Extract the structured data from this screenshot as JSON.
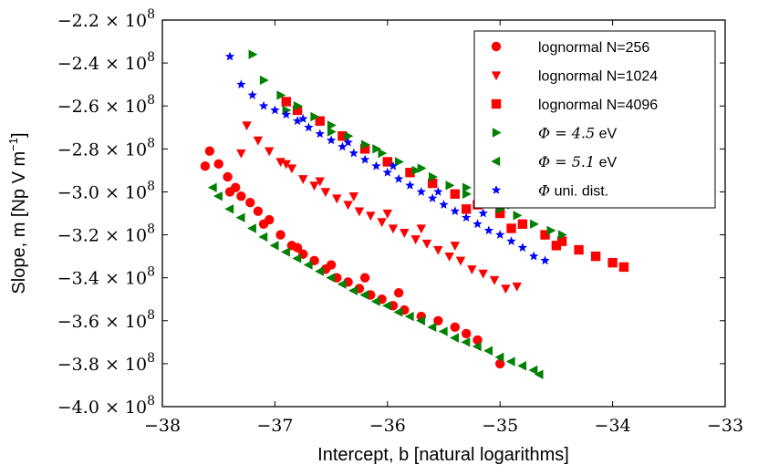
{
  "chart_data": {
    "type": "scatter",
    "title": "",
    "xlabel": "Intercept, b [natural logarithms]",
    "ylabel": "Slope, m [Np V m",
    "ylabel_sup": "−1",
    "ylabel_end": "]",
    "xlim": [
      -38,
      -33
    ],
    "ylim": [
      -400000000.0,
      -220000000.0
    ],
    "xticks": [
      -38,
      -37,
      -36,
      -35,
      -34,
      -33
    ],
    "xtick_labels": [
      "−38",
      "−37",
      "−36",
      "−35",
      "−34",
      "−33"
    ],
    "yticks": [
      -220000000.0,
      -240000000.0,
      -260000000.0,
      -280000000.0,
      -300000000.0,
      -320000000.0,
      -340000000.0,
      -360000000.0,
      -380000000.0,
      -400000000.0
    ],
    "ytick_mantissas": [
      "−2.2",
      "−2.4",
      "−2.6",
      "−2.8",
      "−3.0",
      "−3.2",
      "−3.4",
      "−3.6",
      "−3.8",
      "−4.0"
    ],
    "ytick_suffix": " × 10",
    "ytick_exponent": "8",
    "legend_position": "top-right",
    "series": [
      {
        "name": "lognormal N=256",
        "label_parts": [
          "lognormal N=256"
        ],
        "marker": "circle",
        "color": "#ff0000",
        "x_points": [
          -37.62,
          -37.58,
          -37.5,
          -37.42,
          -37.35,
          -37.3,
          -37.22,
          -37.15,
          -37.05,
          -36.95,
          -36.85,
          -36.75,
          -36.65,
          -36.55,
          -36.45,
          -36.35,
          -36.25,
          -36.15,
          -36.05,
          -35.95,
          -35.85,
          -35.7,
          -35.55,
          -35.4,
          -35.3,
          -35.2,
          -35.0,
          -37.4,
          -37.1,
          -36.8,
          -36.5,
          -36.2,
          -35.9
        ],
        "y_points": [
          -288000000.0,
          -281000000.0,
          -287000000.0,
          -293000000.0,
          -298000000.0,
          -302000000.0,
          -305000000.0,
          -309000000.0,
          -313000000.0,
          -320000000.0,
          -325000000.0,
          -329000000.0,
          -332000000.0,
          -336000000.0,
          -340000000.0,
          -342000000.0,
          -345000000.0,
          -348000000.0,
          -350000000.0,
          -353000000.0,
          -355000000.0,
          -358000000.0,
          -360000000.0,
          -363000000.0,
          -366000000.0,
          -369000000.0,
          -380000000.0,
          -300000000.0,
          -315000000.0,
          -326000000.0,
          -334000000.0,
          -340000000.0,
          -347000000.0
        ]
      },
      {
        "name": "lognormal N=1024",
        "label_parts": [
          "lognormal N=1024"
        ],
        "marker": "triangle-down",
        "color": "#ff0000",
        "x_points": [
          -37.3,
          -37.25,
          -37.15,
          -37.05,
          -36.95,
          -36.85,
          -36.75,
          -36.65,
          -36.55,
          -36.45,
          -36.35,
          -36.25,
          -36.15,
          -36.05,
          -35.95,
          -35.85,
          -35.75,
          -35.65,
          -35.55,
          -35.45,
          -35.35,
          -35.25,
          -35.15,
          -35.05,
          -34.95,
          -34.85,
          -36.9,
          -36.6,
          -36.3,
          -36.0,
          -35.7,
          -35.4
        ],
        "y_points": [
          -282000000.0,
          -269000000.0,
          -276000000.0,
          -281000000.0,
          -286000000.0,
          -289000000.0,
          -294000000.0,
          -297000000.0,
          -300000000.0,
          -303000000.0,
          -306000000.0,
          -309000000.0,
          -311000000.0,
          -314000000.0,
          -317000000.0,
          -319000000.0,
          -322000000.0,
          -324000000.0,
          -327000000.0,
          -330000000.0,
          -332000000.0,
          -336000000.0,
          -338000000.0,
          -341000000.0,
          -345000000.0,
          -344000000.0,
          -287000000.0,
          -295000000.0,
          -302000000.0,
          -310000000.0,
          -317000000.0,
          -325000000.0
        ]
      },
      {
        "name": "lognormal N=4096",
        "label_parts": [
          "lognormal N=4096"
        ],
        "marker": "square",
        "color": "#ff0000",
        "x_points": [
          -36.8,
          -36.9,
          -36.6,
          -36.4,
          -36.2,
          -36.0,
          -35.8,
          -35.6,
          -35.4,
          -35.2,
          -35.0,
          -34.8,
          -34.6,
          -34.45,
          -34.3,
          -34.15,
          -34.0,
          -33.9,
          -35.3,
          -34.9,
          -34.5
        ],
        "y_points": [
          -262000000.0,
          -258000000.0,
          -267000000.0,
          -274000000.0,
          -280000000.0,
          -286000000.0,
          -291000000.0,
          -296000000.0,
          -301000000.0,
          -306000000.0,
          -310000000.0,
          -315000000.0,
          -320000000.0,
          -323000000.0,
          -327000000.0,
          -330000000.0,
          -333000000.0,
          -335000000.0,
          -308000000.0,
          -317000000.0,
          -325000000.0
        ]
      },
      {
        "name": "Φ = 4.5 eV",
        "label_parts": [
          "Φ = 4.5",
          " eV"
        ],
        "marker": "triangle-right",
        "color": "#008000",
        "x_points": [
          -37.2,
          -37.1,
          -36.95,
          -36.8,
          -36.65,
          -36.5,
          -36.35,
          -36.2,
          -36.05,
          -35.9,
          -35.75,
          -35.6,
          -35.45,
          -35.3,
          -35.15,
          -35.0,
          -34.85,
          -34.7,
          -34.55,
          -34.45,
          -36.9,
          -36.5,
          -36.1,
          -35.7,
          -35.3,
          -34.9
        ],
        "y_points": [
          -236000000.0,
          -248000000.0,
          -255000000.0,
          -260000000.0,
          -265000000.0,
          -269000000.0,
          -274000000.0,
          -278000000.0,
          -282000000.0,
          -286000000.0,
          -290000000.0,
          -293000000.0,
          -297000000.0,
          -301000000.0,
          -304000000.0,
          -308000000.0,
          -311000000.0,
          -315000000.0,
          -318000000.0,
          -320000000.0,
          -262000000.0,
          -272000000.0,
          -280000000.0,
          -289000000.0,
          -298000000.0,
          -306000000.0
        ]
      },
      {
        "name": "Φ = 5.1 eV",
        "label_parts": [
          "Φ = 5.1",
          " eV"
        ],
        "marker": "triangle-left",
        "color": "#008000",
        "x_points": [
          -37.55,
          -37.5,
          -37.4,
          -37.3,
          -37.2,
          -37.1,
          -37.0,
          -36.9,
          -36.8,
          -36.7,
          -36.6,
          -36.5,
          -36.4,
          -36.3,
          -36.2,
          -36.1,
          -36.0,
          -35.9,
          -35.8,
          -35.7,
          -35.6,
          -35.5,
          -35.4,
          -35.3,
          -35.2,
          -35.1,
          -35.0,
          -34.9,
          -34.8,
          -34.7,
          -34.65
        ],
        "y_points": [
          -298000000.0,
          -302000000.0,
          -308000000.0,
          -312000000.0,
          -317000000.0,
          -321000000.0,
          -325000000.0,
          -328000000.0,
          -331000000.0,
          -334000000.0,
          -337000000.0,
          -340000000.0,
          -343000000.0,
          -346000000.0,
          -348000000.0,
          -351000000.0,
          -353000000.0,
          -356000000.0,
          -358000000.0,
          -360000000.0,
          -363000000.0,
          -365000000.0,
          -368000000.0,
          -370000000.0,
          -372000000.0,
          -374000000.0,
          -377000000.0,
          -379000000.0,
          -381000000.0,
          -383000000.0,
          -385000000.0
        ]
      },
      {
        "name": "Φ uni. dist.",
        "label_parts": [
          "Φ",
          " uni. dist."
        ],
        "marker": "star",
        "color": "#0000ff",
        "x_points": [
          -37.4,
          -37.3,
          -37.2,
          -37.1,
          -37.0,
          -36.9,
          -36.8,
          -36.7,
          -36.6,
          -36.5,
          -36.4,
          -36.3,
          -36.2,
          -36.1,
          -36.0,
          -35.9,
          -35.8,
          -35.7,
          -35.6,
          -35.5,
          -35.4,
          -35.3,
          -35.2,
          -35.1,
          -35.0,
          -34.9,
          -34.8,
          -34.7,
          -34.6,
          -36.75,
          -36.35,
          -35.95,
          -35.55,
          -35.15
        ],
        "y_points": [
          -237000000.0,
          -250000000.0,
          -255000000.0,
          -260000000.0,
          -262000000.0,
          -264000000.0,
          -267000000.0,
          -270000000.0,
          -273000000.0,
          -276000000.0,
          -279000000.0,
          -282000000.0,
          -285000000.0,
          -288000000.0,
          -291000000.0,
          -294000000.0,
          -297000000.0,
          -300000000.0,
          -303000000.0,
          -306000000.0,
          -309000000.0,
          -312000000.0,
          -315000000.0,
          -318000000.0,
          -320000000.0,
          -323000000.0,
          -326000000.0,
          -330000000.0,
          -332000000.0,
          -266000000.0,
          -277000000.0,
          -288000000.0,
          -300000000.0,
          -310000000.0
        ]
      }
    ]
  }
}
